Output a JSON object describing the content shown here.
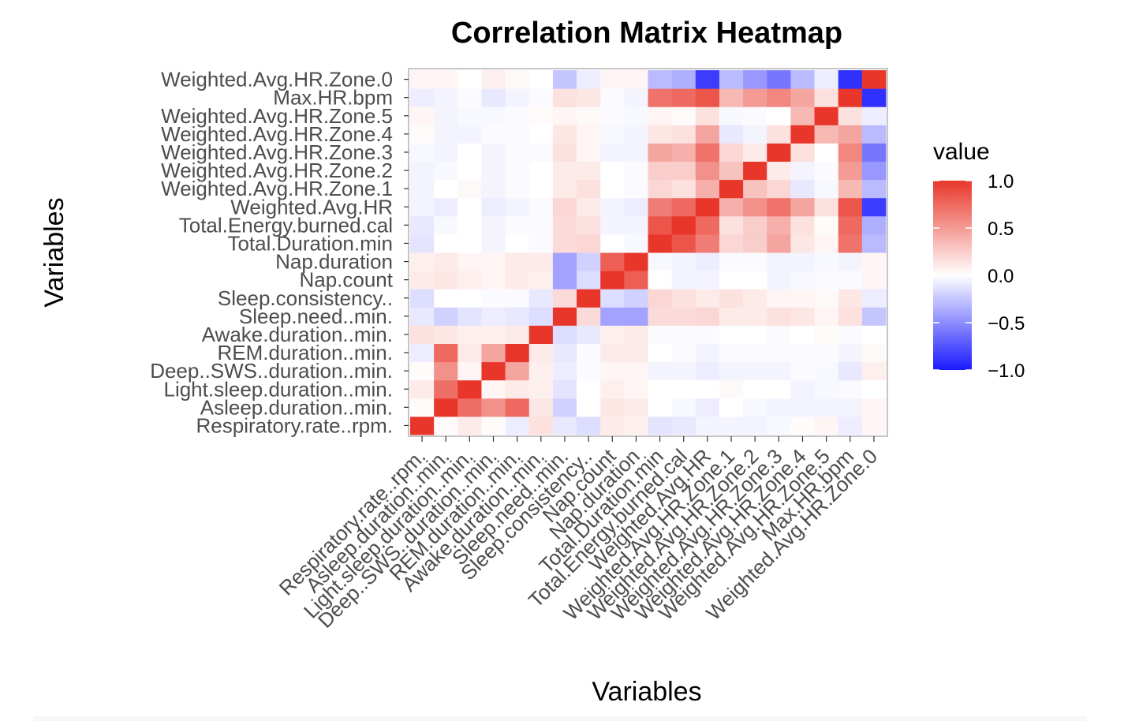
{
  "chart_data": {
    "type": "heatmap",
    "title": "Correlation Matrix Heatmap",
    "xlabel": "Variables",
    "ylabel": "Variables",
    "variables": [
      "Respiratory.rate..rpm.",
      "Asleep.duration..min.",
      "Light.sleep.duration..min.",
      "Deep..SWS..duration..min.",
      "REM.duration..min.",
      "Awake.duration..min.",
      "Sleep.need..min.",
      "Sleep.consistency..",
      "Nap.count",
      "Nap.duration",
      "Total.Duration.min",
      "Total.Energy.burned.cal",
      "Weighted.Avg.HR",
      "Weighted.Avg.HR.Zone.1",
      "Weighted.Avg.HR.Zone.2",
      "Weighted.Avg.HR.Zone.3",
      "Weighted.Avg.HR.Zone.4",
      "Weighted.Avg.HR.Zone.5",
      "Max.HR.bpm",
      "Weighted.Avg.HR.Zone.0"
    ],
    "matrix": [
      [
        1.0,
        0.02,
        0.1,
        0.02,
        -0.08,
        0.15,
        -0.1,
        -0.15,
        0.1,
        0.08,
        -0.12,
        -0.1,
        -0.05,
        -0.05,
        -0.05,
        -0.03,
        0.02,
        0.05,
        -0.08,
        0.05
      ],
      [
        0.02,
        1.0,
        0.72,
        0.55,
        0.75,
        0.12,
        -0.2,
        0.0,
        0.12,
        0.1,
        0.0,
        -0.03,
        -0.08,
        0.0,
        -0.03,
        -0.05,
        -0.05,
        -0.05,
        -0.05,
        0.05
      ],
      [
        0.1,
        0.72,
        1.0,
        0.05,
        0.1,
        0.08,
        -0.12,
        0.0,
        0.08,
        0.05,
        0.0,
        0.0,
        0.0,
        0.03,
        0.0,
        0.0,
        -0.05,
        -0.03,
        -0.02,
        0.0
      ],
      [
        0.02,
        0.55,
        0.05,
        1.0,
        0.45,
        0.08,
        -0.08,
        -0.02,
        0.05,
        0.05,
        -0.05,
        -0.05,
        -0.08,
        -0.05,
        -0.05,
        -0.05,
        -0.02,
        -0.03,
        -0.1,
        0.08
      ],
      [
        -0.08,
        0.75,
        0.1,
        0.45,
        1.0,
        0.1,
        -0.1,
        -0.02,
        0.1,
        0.1,
        0.0,
        -0.02,
        -0.05,
        -0.02,
        -0.02,
        -0.02,
        -0.02,
        -0.02,
        -0.05,
        0.03
      ],
      [
        0.15,
        0.12,
        0.08,
        0.08,
        0.1,
        1.0,
        -0.15,
        -0.1,
        0.08,
        0.1,
        -0.02,
        -0.02,
        -0.02,
        0.0,
        0.0,
        -0.02,
        0.0,
        0.02,
        -0.02,
        0.0
      ],
      [
        -0.1,
        -0.2,
        -0.12,
        -0.08,
        -0.1,
        -0.15,
        1.0,
        0.18,
        -0.4,
        -0.4,
        0.18,
        0.18,
        0.2,
        0.1,
        0.1,
        0.15,
        0.12,
        0.05,
        0.15,
        -0.25
      ],
      [
        -0.15,
        0.0,
        0.0,
        -0.02,
        -0.02,
        -0.1,
        0.18,
        1.0,
        -0.15,
        -0.2,
        0.2,
        0.15,
        0.1,
        0.15,
        0.1,
        0.05,
        0.05,
        0.03,
        0.12,
        -0.08
      ],
      [
        0.1,
        0.12,
        0.08,
        0.05,
        0.1,
        0.08,
        -0.4,
        -0.15,
        1.0,
        0.8,
        0.0,
        -0.05,
        -0.05,
        0.0,
        0.0,
        -0.05,
        -0.03,
        -0.02,
        -0.02,
        0.05
      ],
      [
        0.08,
        0.1,
        0.05,
        0.05,
        0.1,
        0.1,
        -0.4,
        -0.2,
        0.8,
        1.0,
        -0.03,
        -0.05,
        -0.08,
        -0.02,
        -0.02,
        -0.05,
        -0.05,
        -0.03,
        -0.05,
        0.05
      ],
      [
        -0.12,
        0.0,
        0.0,
        -0.05,
        0.0,
        -0.02,
        0.18,
        0.2,
        0.0,
        -0.03,
        1.0,
        0.85,
        0.65,
        0.2,
        0.25,
        0.45,
        0.12,
        0.05,
        0.7,
        -0.3
      ],
      [
        -0.1,
        -0.03,
        0.0,
        -0.05,
        -0.02,
        -0.02,
        0.18,
        0.15,
        -0.05,
        -0.05,
        0.85,
        1.0,
        0.75,
        0.15,
        0.25,
        0.4,
        0.15,
        0.02,
        0.75,
        -0.35
      ],
      [
        -0.05,
        -0.08,
        0.0,
        -0.08,
        -0.05,
        -0.02,
        0.2,
        0.1,
        -0.05,
        -0.08,
        0.65,
        0.75,
        1.0,
        0.4,
        0.55,
        0.7,
        0.45,
        0.15,
        0.85,
        -0.85
      ],
      [
        -0.05,
        0.0,
        0.03,
        -0.05,
        -0.02,
        0.0,
        0.1,
        0.15,
        0.0,
        -0.02,
        0.2,
        0.15,
        0.4,
        1.0,
        0.3,
        0.2,
        -0.1,
        -0.03,
        0.35,
        -0.3
      ],
      [
        -0.05,
        -0.03,
        0.0,
        -0.05,
        -0.02,
        0.0,
        0.1,
        0.1,
        0.0,
        -0.02,
        0.25,
        0.25,
        0.55,
        0.3,
        1.0,
        0.1,
        -0.05,
        -0.02,
        0.5,
        -0.45
      ],
      [
        -0.03,
        -0.05,
        0.0,
        -0.05,
        -0.02,
        -0.02,
        0.15,
        0.05,
        -0.05,
        -0.05,
        0.45,
        0.4,
        0.7,
        0.2,
        0.1,
        1.0,
        0.15,
        0.0,
        0.6,
        -0.6
      ],
      [
        0.02,
        -0.05,
        -0.05,
        -0.02,
        -0.02,
        0.0,
        0.12,
        0.05,
        -0.03,
        -0.05,
        0.12,
        0.15,
        0.45,
        -0.1,
        -0.05,
        0.15,
        1.0,
        0.35,
        0.45,
        -0.3
      ],
      [
        0.05,
        -0.05,
        -0.03,
        -0.03,
        -0.02,
        0.02,
        0.05,
        0.03,
        -0.02,
        -0.03,
        0.05,
        0.02,
        0.15,
        -0.03,
        -0.02,
        0.0,
        0.35,
        1.0,
        0.15,
        -0.08
      ],
      [
        -0.08,
        -0.05,
        -0.02,
        -0.1,
        -0.05,
        -0.02,
        0.15,
        0.12,
        -0.02,
        -0.05,
        0.7,
        0.75,
        0.85,
        0.35,
        0.5,
        0.6,
        0.45,
        0.15,
        1.0,
        -0.9
      ],
      [
        0.05,
        0.05,
        0.0,
        0.08,
        0.03,
        0.0,
        -0.25,
        -0.08,
        0.05,
        0.05,
        -0.3,
        -0.35,
        -0.85,
        -0.3,
        -0.45,
        -0.6,
        -0.3,
        -0.08,
        -0.9,
        1.0
      ]
    ],
    "color_scale": {
      "low": "#1a1aff",
      "mid": "#ffffff",
      "high": "#e8372a",
      "limits": [
        -1.0,
        1.0
      ]
    },
    "legend": {
      "title": "value",
      "position": "right",
      "breaks": [
        "1.0",
        "0.5",
        "0.0",
        "−0.5",
        "−1.0"
      ]
    },
    "grid": false
  }
}
